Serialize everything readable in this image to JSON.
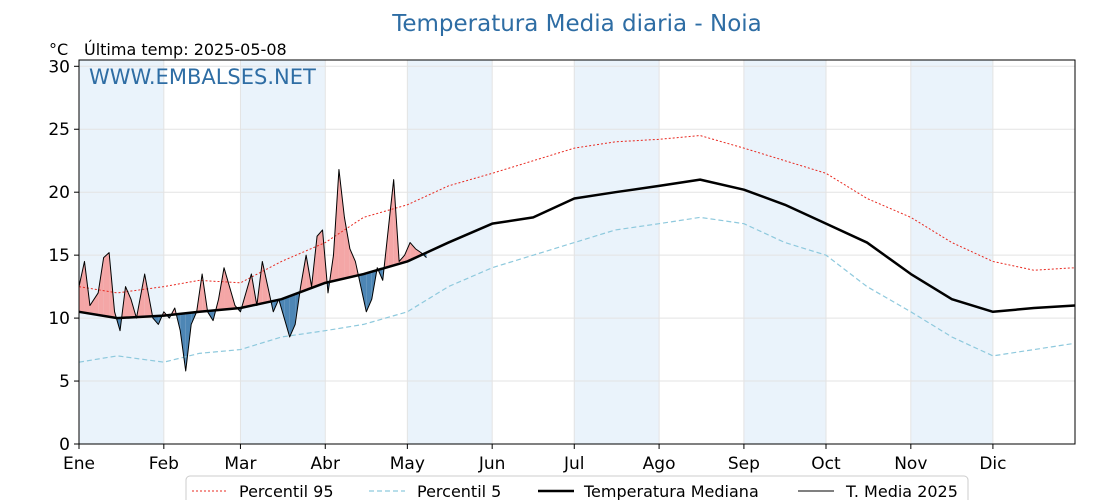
{
  "chart_data": {
    "type": "line",
    "title": "Temperatura Media diaria - Noia",
    "unit_label": "°C",
    "last_temp_label": "Última temp: 2025-05-08",
    "watermark": "WWW.EMBALSES.NET",
    "ylim": [
      0,
      30.5
    ],
    "xlim_days": [
      1,
      365
    ],
    "yticks": [
      0,
      5,
      10,
      15,
      20,
      25,
      30
    ],
    "months": [
      "Ene",
      "Feb",
      "Mar",
      "Abr",
      "May",
      "Jun",
      "Jul",
      "Ago",
      "Sep",
      "Oct",
      "Nov",
      "Dic"
    ],
    "month_start_days": [
      1,
      32,
      60,
      91,
      121,
      152,
      182,
      213,
      244,
      274,
      305,
      335
    ],
    "grid": true,
    "legend_placement": "bottom",
    "colors": {
      "p95": "#e8281f",
      "p5": "#8ec9dd",
      "mediana": "#000000",
      "media2025": "#000000",
      "above": "#f4a6a6",
      "below": "#4d86b5",
      "band": "#eaf3fb",
      "title": "#2e6da4"
    },
    "series": [
      {
        "name": "Percentil 95",
        "key": "p95",
        "style": "dotted-red",
        "x": [
          1,
          15,
          32,
          45,
          60,
          75,
          91,
          105,
          121,
          136,
          152,
          167,
          182,
          197,
          213,
          228,
          244,
          259,
          274,
          289,
          305,
          320,
          335,
          350,
          365
        ],
        "y": [
          12.5,
          12.0,
          12.5,
          13.0,
          12.8,
          14.5,
          16.0,
          18.0,
          19.0,
          20.5,
          21.5,
          22.5,
          23.5,
          24.0,
          24.2,
          24.5,
          23.5,
          22.5,
          21.5,
          19.5,
          18.0,
          16.0,
          14.5,
          13.8,
          14.0
        ]
      },
      {
        "name": "Percentil 5",
        "key": "p5",
        "style": "dashed-lightblue",
        "x": [
          1,
          15,
          32,
          45,
          60,
          75,
          91,
          105,
          121,
          136,
          152,
          167,
          182,
          197,
          213,
          228,
          244,
          259,
          274,
          289,
          305,
          320,
          335,
          350,
          365
        ],
        "y": [
          6.5,
          7.0,
          6.5,
          7.2,
          7.5,
          8.5,
          9.0,
          9.5,
          10.5,
          12.5,
          14.0,
          15.0,
          16.0,
          17.0,
          17.5,
          18.0,
          17.5,
          16.0,
          15.0,
          12.5,
          10.5,
          8.5,
          7.0,
          7.5,
          8.0
        ]
      },
      {
        "name": "Temperatura Mediana",
        "key": "mediana",
        "style": "thick-black",
        "x": [
          1,
          15,
          32,
          45,
          60,
          75,
          91,
          105,
          121,
          136,
          152,
          167,
          182,
          197,
          213,
          228,
          244,
          259,
          274,
          289,
          305,
          320,
          335,
          350,
          365
        ],
        "y": [
          10.5,
          10.0,
          10.2,
          10.5,
          10.8,
          11.5,
          12.8,
          13.5,
          14.5,
          16.0,
          17.5,
          18.0,
          19.5,
          20.0,
          20.5,
          21.0,
          20.2,
          19.0,
          17.5,
          16.0,
          13.5,
          11.5,
          10.5,
          10.8,
          11.0
        ]
      },
      {
        "name": "T. Media 2025",
        "key": "media2025",
        "style": "thin-black",
        "x": [
          1,
          3,
          5,
          8,
          10,
          12,
          14,
          16,
          18,
          20,
          22,
          25,
          28,
          30,
          32,
          34,
          36,
          38,
          40,
          42,
          44,
          46,
          48,
          50,
          52,
          54,
          56,
          58,
          60,
          62,
          64,
          66,
          68,
          70,
          72,
          74,
          76,
          78,
          80,
          82,
          84,
          86,
          88,
          90,
          92,
          94,
          96,
          98,
          100,
          102,
          104,
          106,
          108,
          110,
          112,
          114,
          116,
          118,
          120,
          122,
          124,
          126,
          128
        ],
        "y": [
          12.5,
          14.5,
          11.0,
          12.0,
          14.8,
          15.2,
          10.5,
          9.0,
          12.5,
          11.5,
          10.0,
          13.5,
          10.0,
          9.5,
          10.5,
          10.0,
          10.8,
          9.0,
          5.8,
          9.5,
          10.5,
          13.5,
          10.5,
          9.8,
          11.5,
          14.0,
          12.5,
          11.0,
          10.5,
          12.0,
          13.5,
          11.0,
          14.5,
          12.5,
          10.5,
          11.5,
          10.0,
          8.5,
          9.5,
          12.5,
          15.0,
          12.5,
          16.5,
          17.0,
          12.0,
          15.0,
          21.8,
          18.0,
          15.5,
          14.5,
          12.5,
          10.5,
          11.5,
          14.0,
          13.0,
          17.0,
          21.0,
          14.5,
          15.0,
          16.0,
          15.5,
          15.2,
          14.8
        ]
      }
    ]
  }
}
